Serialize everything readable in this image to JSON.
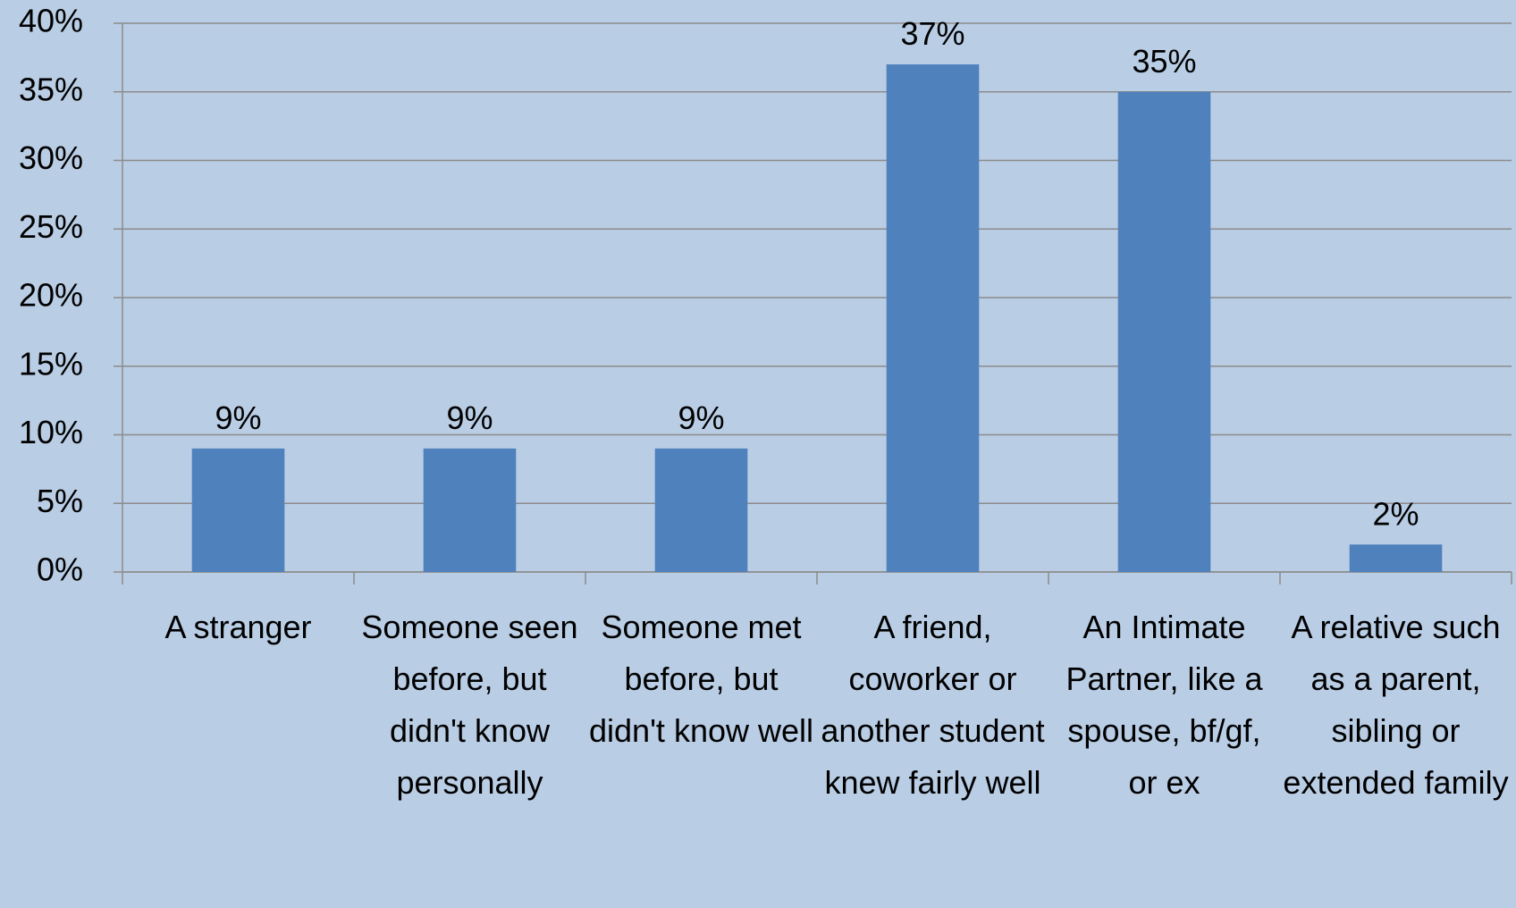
{
  "chart_data": {
    "type": "bar",
    "categories": [
      "A stranger",
      "Someone seen before, but didn't know personally",
      "Someone met before, but didn't know well",
      "A friend, coworker or another student knew fairly well",
      "An Intimate Partner, like a spouse, bf/gf, or ex",
      "A relative such as a parent, sibling or extended family"
    ],
    "values": [
      9,
      9,
      9,
      37,
      35,
      2
    ],
    "value_labels": [
      "9%",
      "9%",
      "9%",
      "37%",
      "35%",
      "2%"
    ],
    "color": "#4f81bd",
    "ylim": [
      0,
      40
    ],
    "yticks": [
      {
        "value": 0,
        "label": "0%"
      },
      {
        "value": 5,
        "label": "5%"
      },
      {
        "value": 10,
        "label": "10%"
      },
      {
        "value": 15,
        "label": "15%"
      },
      {
        "value": 20,
        "label": "20%"
      },
      {
        "value": 25,
        "label": "25%"
      },
      {
        "value": 30,
        "label": "30%"
      },
      {
        "value": 35,
        "label": "35%"
      },
      {
        "value": 40,
        "label": "40%"
      }
    ],
    "grid": true
  }
}
